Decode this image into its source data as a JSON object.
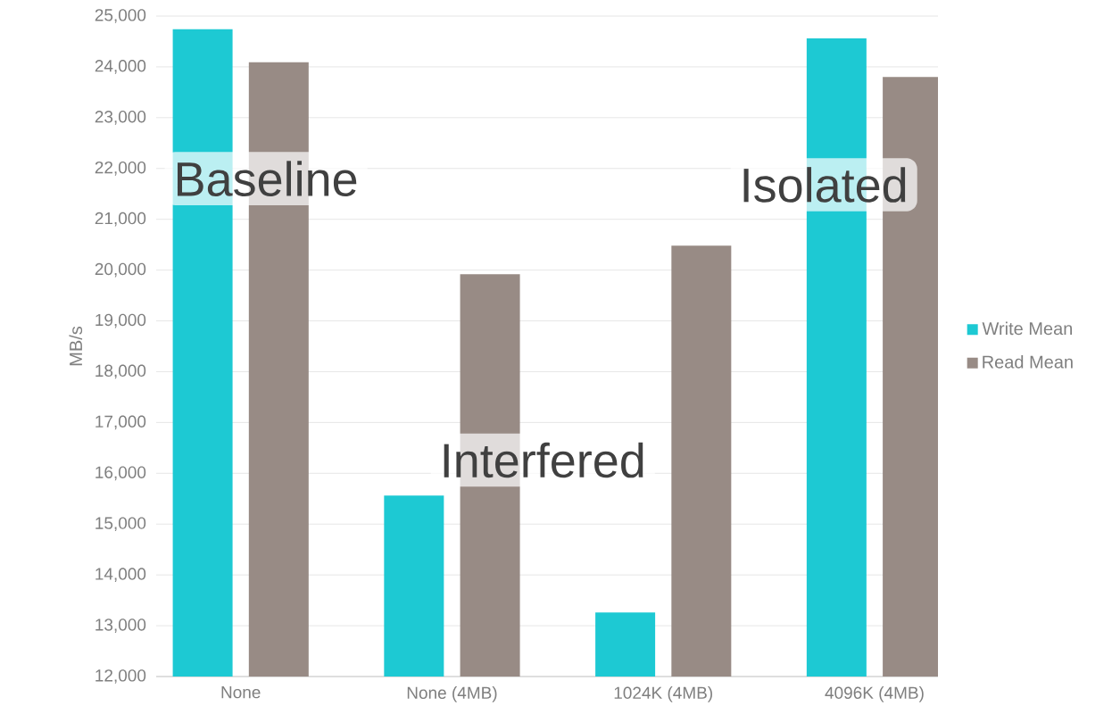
{
  "chart_data": {
    "type": "bar",
    "ylabel": "MB/s",
    "categories": [
      "None",
      "None (4MB)",
      "1024K (4MB)",
      "4096K (4MB)"
    ],
    "series": [
      {
        "name": "Write Mean",
        "color": "#1dc9d3",
        "values": [
          24740,
          15560,
          13260,
          24560
        ]
      },
      {
        "name": "Read Mean",
        "color": "#988b85",
        "values": [
          24090,
          19920,
          20480,
          23800
        ]
      }
    ],
    "ylim": [
      12000,
      25000
    ],
    "yticks": [
      {
        "value": 12000,
        "label": "12,000"
      },
      {
        "value": 13000,
        "label": "13,000"
      },
      {
        "value": 14000,
        "label": "14,000"
      },
      {
        "value": 15000,
        "label": "15,000"
      },
      {
        "value": 16000,
        "label": "16,000"
      },
      {
        "value": 17000,
        "label": "17,000"
      },
      {
        "value": 18000,
        "label": "18,000"
      },
      {
        "value": 19000,
        "label": "19,000"
      },
      {
        "value": 20000,
        "label": "20,000"
      },
      {
        "value": 21000,
        "label": "21,000"
      },
      {
        "value": 22000,
        "label": "22,000"
      },
      {
        "value": 23000,
        "label": "23,000"
      },
      {
        "value": 24000,
        "label": "24,000"
      },
      {
        "value": 25000,
        "label": "25,000"
      }
    ],
    "grid": "y",
    "legend": "right",
    "annotations": [
      "Baseline",
      "Interfered",
      "Isolated"
    ]
  }
}
